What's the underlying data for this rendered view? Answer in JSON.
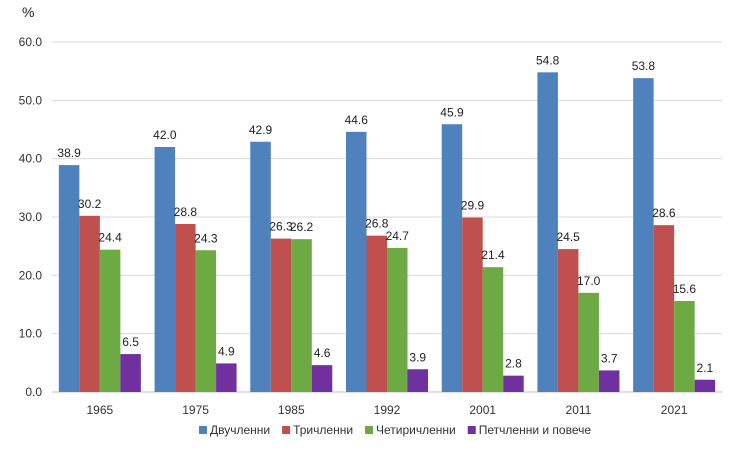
{
  "chart_data": {
    "type": "bar",
    "title": "",
    "ylabel": "%",
    "xlabel": "",
    "ylim": [
      0,
      60
    ],
    "yticks": [
      "0.0",
      "10.0",
      "20.0",
      "30.0",
      "40.0",
      "50.0",
      "60.0"
    ],
    "grid": true,
    "legend_position": "bottom",
    "categories": [
      "1965",
      "1975",
      "1985",
      "1992",
      "2001",
      "2011",
      "2021"
    ],
    "series": [
      {
        "name": "Двучленни",
        "color": "#4F81BD",
        "values": [
          38.9,
          42.0,
          42.9,
          44.6,
          45.9,
          54.8,
          53.8
        ],
        "labels": [
          "38.9",
          "42.0",
          "42.9",
          "44.6",
          "45.9",
          "54.8",
          "53.8"
        ]
      },
      {
        "name": "Тричленни",
        "color": "#C0504D",
        "values": [
          30.2,
          28.8,
          26.3,
          26.8,
          29.9,
          24.5,
          28.6
        ],
        "labels": [
          "30.2",
          "28.8",
          "26.3",
          "26.8",
          "29.9",
          "24.5",
          "28.6"
        ]
      },
      {
        "name": "Четиричленни",
        "color": "#6EAA44",
        "values": [
          24.4,
          24.3,
          26.2,
          24.7,
          21.4,
          17.0,
          15.6
        ],
        "labels": [
          "24.4",
          "24.3",
          "26.2",
          "24.7",
          "21.4",
          "17.0",
          "15.6"
        ]
      },
      {
        "name": "Петчленни и повече",
        "color": "#7030A0",
        "values": [
          6.5,
          4.9,
          4.6,
          3.9,
          2.8,
          3.7,
          2.1
        ],
        "labels": [
          "6.5",
          "4.9",
          "4.6",
          "3.9",
          "2.8",
          "3.7",
          "2.1"
        ]
      }
    ]
  }
}
